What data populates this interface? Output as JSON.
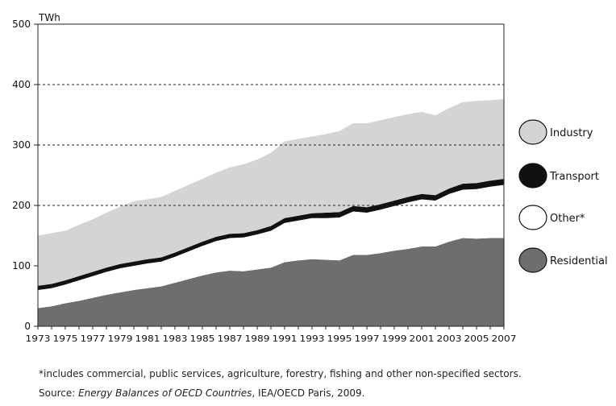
{
  "chart_data": {
    "type": "area",
    "stacked": true,
    "unit": "TWh",
    "x": [
      1973,
      1974,
      1975,
      1976,
      1977,
      1978,
      1979,
      1980,
      1981,
      1982,
      1983,
      1984,
      1985,
      1986,
      1987,
      1988,
      1989,
      1990,
      1991,
      1992,
      1993,
      1994,
      1995,
      1996,
      1997,
      1998,
      1999,
      2000,
      2001,
      2002,
      2003,
      2004,
      2005,
      2006,
      2007
    ],
    "x_tick_labels": [
      "1973",
      "1975",
      "1977",
      "1979",
      "1981",
      "1983",
      "1985",
      "1987",
      "1989",
      "1991",
      "1993",
      "1995",
      "1997",
      "1999",
      "2001",
      "2003",
      "2005",
      "2007"
    ],
    "ylim": [
      0,
      500
    ],
    "y_ticks": [
      "0",
      "100",
      "200",
      "300",
      "400",
      "500"
    ],
    "grid": "dashed horizontal lines at 200, 300, 400",
    "legend_position": "right",
    "series": [
      {
        "name": "Residential",
        "color": "#6e6e6e",
        "values": [
          30,
          33,
          38,
          42,
          47,
          52,
          56,
          60,
          63,
          66,
          72,
          78,
          84,
          89,
          92,
          91,
          94,
          97,
          106,
          109,
          111,
          110,
          109,
          118,
          118,
          121,
          125,
          128,
          132,
          132,
          140,
          146,
          145,
          146,
          146
        ]
      },
      {
        "name": "Other*",
        "color": "#ffffff",
        "values": [
          30,
          30,
          31,
          34,
          36,
          38,
          40,
          40,
          41,
          41,
          43,
          46,
          49,
          52,
          54,
          56,
          58,
          61,
          65,
          66,
          68,
          69,
          71,
          72,
          70,
          72,
          74,
          77,
          78,
          76,
          79,
          80,
          82,
          85,
          88
        ]
      },
      {
        "name": "Transport",
        "color": "#111111",
        "values": [
          7,
          7,
          7,
          7,
          7,
          7,
          7,
          7,
          7,
          7,
          7,
          7,
          7,
          7,
          7,
          7,
          7,
          8,
          8,
          8,
          8,
          9,
          9,
          9,
          9,
          9,
          9,
          9,
          9,
          9,
          9,
          10,
          10,
          10,
          10
        ]
      },
      {
        "name": "Industry",
        "color": "#d4d4d4",
        "values": [
          83,
          84,
          82,
          85,
          87,
          91,
          95,
          100,
          99,
          100,
          102,
          103,
          104,
          106,
          110,
          114,
          117,
          121,
          127,
          127,
          127,
          130,
          134,
          137,
          139,
          139,
          138,
          137,
          136,
          132,
          133,
          135,
          136,
          133,
          132
        ]
      }
    ],
    "legend_order": [
      "Industry",
      "Transport",
      "Other*",
      "Residential"
    ]
  },
  "footnote": "*includes commercial, public services, agriculture, forestry, fishing and other non-specified sectors.",
  "source": {
    "prefix": "Source: ",
    "title": "Energy Balances of OECD Countries",
    "suffix": ", IEA/OECD Paris, 2009."
  }
}
